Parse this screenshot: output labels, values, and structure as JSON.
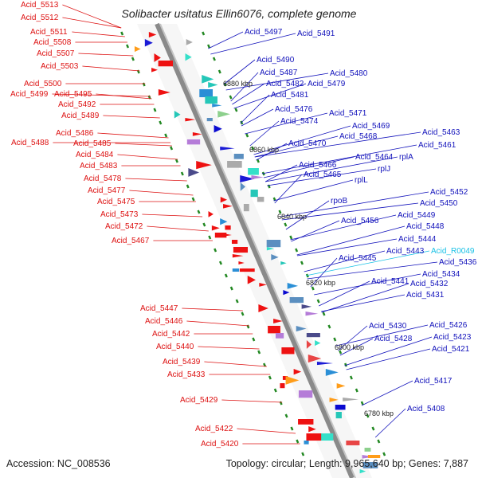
{
  "title": "Solibacter usitatus Ellin6076, complete genome",
  "accession_text": "Accession: NC_008536",
  "summary_text": "Topology: circular; Length: 9,965,640 bp; Genes: 7,887",
  "colors": {
    "left_strand": "#dd1111",
    "right_strand": "#1111bb",
    "rna": "#19c1e6",
    "axis": "#8a8a8a",
    "tick": "#228822"
  },
  "kbp_markers": [
    "6880 kbp",
    "6860 kbp",
    "6840 kbp",
    "6820 kbp",
    "6800 kbp",
    "6780 kbp"
  ],
  "left_labels": [
    "Acid_5513",
    "Acid_5512",
    "Acid_5511",
    "Acid_5508",
    "Acid_5507",
    "Acid_5503",
    "Acid_5500",
    "Acid_5499",
    "Acid_5495",
    "Acid_5492",
    "Acid_5489",
    "Acid_5486",
    "Acid_5488",
    "Acid_5485",
    "Acid_5484",
    "Acid_5483",
    "Acid_5478",
    "Acid_5477",
    "Acid_5475",
    "Acid_5473",
    "Acid_5472",
    "Acid_5467",
    "Acid_5447",
    "Acid_5446",
    "Acid_5442",
    "Acid_5440",
    "Acid_5439",
    "Acid_5433",
    "Acid_5429",
    "Acid_5422",
    "Acid_5420"
  ],
  "right_labels": [
    "Acid_5497",
    "Acid_5491",
    "Acid_5490",
    "Acid_5487",
    "Acid_5480",
    "Acid_5482",
    "Acid_5479",
    "Acid_5481",
    "Acid_5476",
    "Acid_5471",
    "Acid_5474",
    "Acid_5469",
    "Acid_5470",
    "Acid_5468",
    "Acid_5463",
    "Acid_5461",
    "Acid_5466",
    "Acid_5464",
    "rplA",
    "Acid_5465",
    "rplJ",
    "rplL",
    "Acid_5452",
    "rpoB",
    "Acid_5450",
    "Acid_5456",
    "Acid_5449",
    "Acid_5448",
    "Acid_5444",
    "Acid_5443",
    "Acid_R0049",
    "Acid_5445",
    "Acid_5436",
    "Acid_5434",
    "Acid_5441",
    "Acid_5432",
    "Acid_5431",
    "Acid_5426",
    "Acid_5430",
    "Acid_5423",
    "Acid_5428",
    "Acid_5421",
    "Acid_5417",
    "Acid_5408"
  ]
}
